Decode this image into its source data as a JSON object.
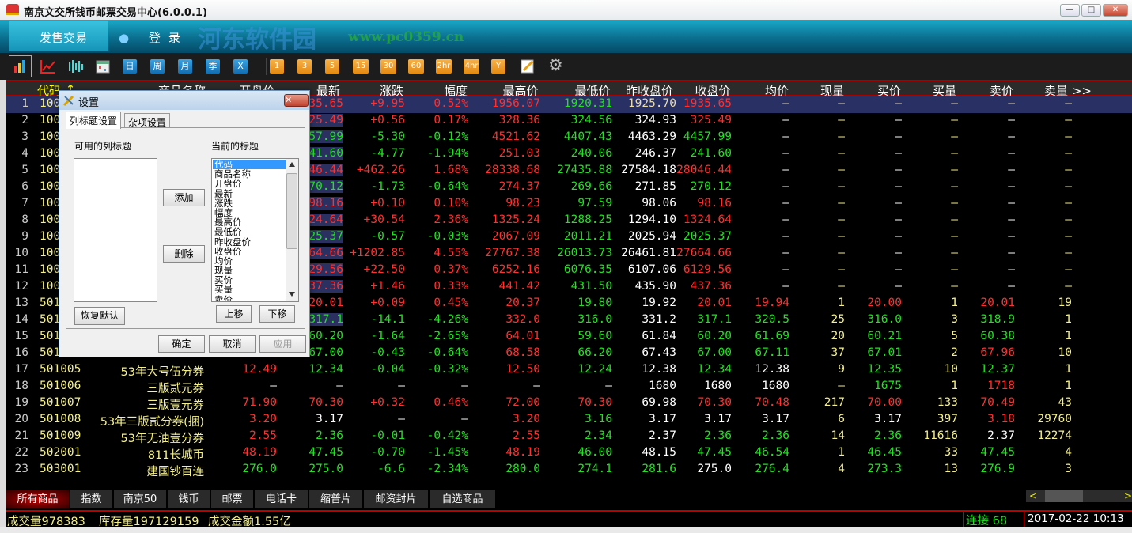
{
  "window": {
    "title": "南京文交所钱币邮票交易中心(6.0.0.1)",
    "minimize": "—",
    "maximize": "□",
    "close": "✕"
  },
  "banner": {
    "tab": "发售交易",
    "login": "登录",
    "watermark": "河东软件园",
    "watermark_url": "www.pc0359.cn"
  },
  "toolbar": {
    "icons": [
      "bar-chart-icon",
      "line-chart-icon",
      "candlestick-icon",
      "calendar-icon"
    ],
    "period_blue": [
      "日",
      "周",
      "月",
      "季",
      "X"
    ],
    "period_orange": [
      "1",
      "3",
      "5",
      "15",
      "30",
      "60",
      "2hr",
      "4hr",
      "Y"
    ]
  },
  "columns": [
    "代码",
    "商品名称",
    "开盘价",
    "最新",
    "涨跌",
    "幅度",
    "最高价",
    "最低价",
    "昨收盘价",
    "收盘价",
    "均价",
    "现量",
    "买价",
    "买量",
    "卖价",
    "卖量 >>"
  ],
  "sort_indicator": "↑",
  "colors": {
    "r": "#ff3030",
    "g": "#22e022",
    "w": "#ffffff",
    "y": "#f4f08a",
    "c": "#e8dcb0",
    "selected_row": "#283064",
    "accent_red": "#aa0000"
  },
  "rows": [
    {
      "v": [
        "1",
        "100",
        "",
        "",
        "1935.65",
        "+9.95",
        "0.52%",
        "1956.07",
        "1920.31",
        "1925.70",
        "1935.65",
        "—",
        "—",
        "—",
        "—",
        "—",
        "—"
      ],
      "c": "nyyrrrrrgcrcccccc",
      "sel": true
    },
    {
      "v": [
        "2",
        "100",
        "",
        "",
        "325.49",
        "+0.56",
        "0.17%",
        "328.36",
        "324.56",
        "324.93",
        "325.49",
        "—",
        "—",
        "—",
        "—",
        "—",
        "—"
      ],
      "c": "nyyrrrrrgwrwywywy"
    },
    {
      "v": [
        "3",
        "100",
        "",
        "",
        "4457.99",
        "-5.30",
        "-0.12%",
        "4521.62",
        "4407.43",
        "4463.29",
        "4457.99",
        "—",
        "—",
        "—",
        "—",
        "—",
        "—"
      ],
      "c": "nyyggggrgwgwywywy"
    },
    {
      "v": [
        "4",
        "100",
        "",
        "",
        "241.60",
        "-4.77",
        "-1.94%",
        "251.03",
        "240.06",
        "246.37",
        "241.60",
        "—",
        "—",
        "—",
        "—",
        "—",
        "—"
      ],
      "c": "nyyggggrgwgwywywy"
    },
    {
      "v": [
        "5",
        "100",
        "",
        "",
        "28046.44",
        "+462.26",
        "1.68%",
        "28338.68",
        "27435.88",
        "27584.18",
        "28046.44",
        "—",
        "—",
        "—",
        "—",
        "—",
        "—"
      ],
      "c": "nyyrrrrrgwrwywywy"
    },
    {
      "v": [
        "6",
        "100",
        "",
        "",
        "270.12",
        "-1.73",
        "-0.64%",
        "274.37",
        "269.66",
        "271.85",
        "270.12",
        "—",
        "—",
        "—",
        "—",
        "—",
        "—"
      ],
      "c": "nyyggggrgwgwywywy"
    },
    {
      "v": [
        "7",
        "100",
        "",
        "",
        "98.16",
        "+0.10",
        "0.10%",
        "98.23",
        "97.59",
        "98.06",
        "98.16",
        "—",
        "—",
        "—",
        "—",
        "—",
        "—"
      ],
      "c": "nyyrrrrrgwrwywywy"
    },
    {
      "v": [
        "8",
        "100",
        "",
        "",
        "1324.64",
        "+30.54",
        "2.36%",
        "1325.24",
        "1288.25",
        "1294.10",
        "1324.64",
        "—",
        "—",
        "—",
        "—",
        "—",
        "—"
      ],
      "c": "nyyrrrrrgwrwywywy"
    },
    {
      "v": [
        "9",
        "100",
        "",
        "",
        "2025.37",
        "-0.57",
        "-0.03%",
        "2067.09",
        "2011.21",
        "2025.94",
        "2025.37",
        "—",
        "—",
        "—",
        "—",
        "—",
        "—"
      ],
      "c": "nyyggggrgwgwywywy"
    },
    {
      "v": [
        "10",
        "100",
        "",
        "",
        "27664.66",
        "+1202.85",
        "4.55%",
        "27767.38",
        "26013.73",
        "26461.81",
        "27664.66",
        "—",
        "—",
        "—",
        "—",
        "—",
        "—"
      ],
      "c": "nyyrrrrrgwrwywywy"
    },
    {
      "v": [
        "11",
        "100",
        "",
        "",
        "6129.56",
        "+22.50",
        "0.37%",
        "6252.16",
        "6076.35",
        "6107.06",
        "6129.56",
        "—",
        "—",
        "—",
        "—",
        "—",
        "—"
      ],
      "c": "nyyrrrrrgwrwywywy"
    },
    {
      "v": [
        "12",
        "100",
        "",
        "",
        "437.36",
        "+1.46",
        "0.33%",
        "441.42",
        "431.50",
        "435.90",
        "437.36",
        "—",
        "—",
        "—",
        "—",
        "—",
        "—"
      ],
      "c": "nyyrrrrrgwrwywywy"
    },
    {
      "v": [
        "13",
        "501",
        "",
        "",
        "20.01",
        "+0.09",
        "0.45%",
        "20.37",
        "19.80",
        "19.92",
        "20.01",
        "19.94",
        "1",
        "20.00",
        "1",
        "20.01",
        "19"
      ],
      "c": "nyyrrrrrgwrryryry"
    },
    {
      "v": [
        "14",
        "501",
        "",
        "",
        "317.1",
        "-14.1",
        "-4.26%",
        "332.0",
        "316.0",
        "331.2",
        "317.1",
        "320.5",
        "25",
        "316.0",
        "3",
        "318.9",
        "1"
      ],
      "c": "nyyggggrgwggygygy"
    },
    {
      "v": [
        "15",
        "501",
        "",
        "",
        "60.20",
        "-1.64",
        "-2.65%",
        "64.01",
        "59.60",
        "61.84",
        "60.20",
        "61.69",
        "20",
        "60.21",
        "5",
        "60.38",
        "1"
      ],
      "c": "nyyggggrgwggygygy"
    },
    {
      "v": [
        "16",
        "501",
        "",
        "",
        "67.00",
        "-0.43",
        "-0.64%",
        "68.58",
        "66.20",
        "67.43",
        "67.00",
        "67.11",
        "37",
        "67.01",
        "2",
        "67.96",
        "10"
      ],
      "c": "nyyggggrgwggygyry"
    },
    {
      "v": [
        "17",
        "501005",
        "53年大号伍分券",
        "12.49",
        "12.34",
        "-0.04",
        "-0.32%",
        "12.50",
        "12.24",
        "12.38",
        "12.34",
        "12.38",
        "9",
        "12.35",
        "10",
        "12.37",
        "1"
      ],
      "c": "nyyrgggrgwgwygygy"
    },
    {
      "v": [
        "18",
        "501006",
        "三版贰元券",
        "—",
        "—",
        "—",
        "—",
        "—",
        "—",
        "1680",
        "1680",
        "1680",
        "—",
        "1675",
        "1",
        "1718",
        "1"
      ],
      "c": "nyywwwwwwwwwygyry"
    },
    {
      "v": [
        "19",
        "501007",
        "三版壹元券",
        "71.90",
        "70.30",
        "+0.32",
        "0.46%",
        "72.00",
        "70.30",
        "69.98",
        "70.30",
        "70.48",
        "217",
        "70.00",
        "133",
        "70.49",
        "43"
      ],
      "c": "nyyrrrrrrwrryryry"
    },
    {
      "v": [
        "20",
        "501008",
        "53年三版贰分券(捆)",
        "3.20",
        "3.17",
        "—",
        "—",
        "3.20",
        "3.16",
        "3.17",
        "3.17",
        "3.17",
        "6",
        "3.17",
        "397",
        "3.18",
        "29760"
      ],
      "c": "nyyrwwwrgwwwywyry"
    },
    {
      "v": [
        "21",
        "501009",
        "53年无油壹分券",
        "2.55",
        "2.36",
        "-0.01",
        "-0.42%",
        "2.55",
        "2.34",
        "2.37",
        "2.36",
        "2.36",
        "14",
        "2.36",
        "11616",
        "2.37",
        "12274"
      ],
      "c": "nyyrgggrgwggygywy"
    },
    {
      "v": [
        "22",
        "502001",
        "811长城币",
        "48.19",
        "47.45",
        "-0.70",
        "-1.45%",
        "48.19",
        "46.00",
        "48.15",
        "47.45",
        "46.54",
        "1",
        "46.45",
        "33",
        "47.45",
        "4"
      ],
      "c": "nyyrgggrgwggygygy"
    },
    {
      "v": [
        "23",
        "503001",
        "建国钞百连",
        "276.0",
        "275.0",
        "-6.6",
        "-2.34%",
        "280.0",
        "274.1",
        "281.6",
        "275.0",
        "276.4",
        "4",
        "273.3",
        "13",
        "276.9",
        "3"
      ],
      "c": "nyygggggggwgygygy"
    }
  ],
  "tabs": [
    "所有商品",
    "指数",
    "南京50",
    "钱币",
    "邮票",
    "电话卡",
    "缩普片",
    "邮资封片",
    "自选商品"
  ],
  "scroll": {
    "left": "<",
    "right": ">"
  },
  "status": {
    "volume": "成交量978383",
    "stock": "库存量197129159",
    "amount": "成交金额1.55亿",
    "connection": "连接 68",
    "datetime": "2017-02-22 10:13"
  },
  "dialog": {
    "title": "设置",
    "close": "✕",
    "tabs": [
      "列标题设置",
      "杂项设置"
    ],
    "available_label": "可用的列标题",
    "current_label": "当前的标题",
    "current_items": [
      "代码",
      "商品名称",
      "开盘价",
      "最新",
      "涨跌",
      "幅度",
      "最高价",
      "最低价",
      "昨收盘价",
      "收盘价",
      "均价",
      "现量",
      "买价",
      "买量",
      "卖价"
    ],
    "add": "添加",
    "delete": "删除",
    "restore": "恢复默认",
    "up": "上移",
    "down": "下移",
    "ok": "确定",
    "cancel": "取消",
    "apply": "应用"
  }
}
